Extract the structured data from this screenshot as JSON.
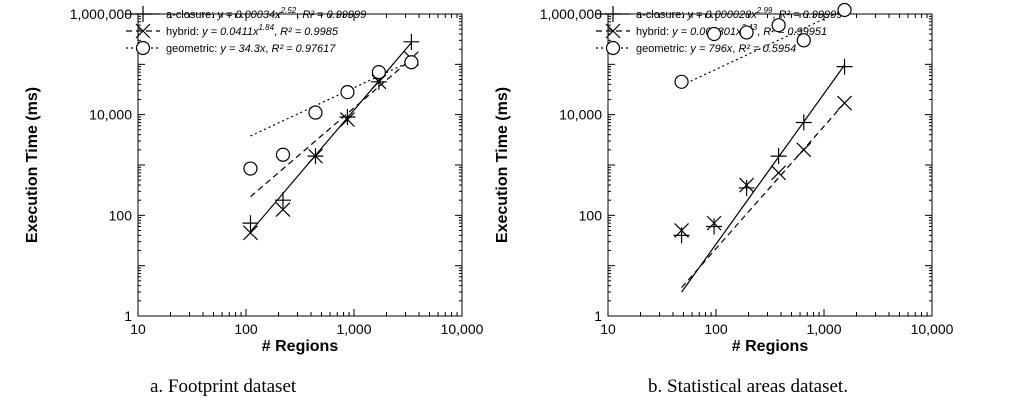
{
  "chart_data": [
    {
      "type": "scatter",
      "caption": "a. Footprint dataset",
      "xlabel": "# Regions",
      "ylabel": "Execution Time (ms)",
      "x_scale": "log",
      "y_scale": "log",
      "xlim": [
        10,
        10000
      ],
      "ylim": [
        1,
        1000000
      ],
      "x_ticks": [
        "10",
        "100",
        "1,000",
        "10,000"
      ],
      "y_ticks": [
        "1",
        "100",
        "10,000",
        "1,000,000"
      ],
      "legend_position": "top-left",
      "series": [
        {
          "name": "a-closure",
          "marker": "plus",
          "line": "solid",
          "eq_main": "a-closure: ",
          "eq_formula": "y = 0.00034x",
          "eq_exp": "2.52",
          "eq_r2": "R² = 0.99999",
          "fit": {
            "kind": "power",
            "a": 0.00034,
            "b": 2.52
          },
          "x": [
            110,
            220,
            440,
            870,
            1700,
            3400
          ],
          "y": [
            70,
            200,
            1500,
            9000,
            45000,
            280000
          ]
        },
        {
          "name": "hybrid",
          "marker": "x",
          "line": "dashed",
          "eq_main": "hybrid: ",
          "eq_formula": "y = 0.0411x",
          "eq_exp": "1.84",
          "eq_r2": "R² = 0.9985",
          "fit": {
            "kind": "power",
            "a": 0.0411,
            "b": 1.84
          },
          "x": [
            110,
            220,
            440,
            870,
            1700,
            3400
          ],
          "y": [
            45,
            130,
            1500,
            8000,
            45000,
            130000
          ]
        },
        {
          "name": "geometric",
          "marker": "circle",
          "line": "dotted",
          "eq_main": "geometric: ",
          "eq_formula": "y = 34.3x",
          "eq_exp": "",
          "eq_r2": "R² = 0.97617",
          "fit": {
            "kind": "linear",
            "a": 34.3
          },
          "x": [
            110,
            220,
            440,
            870,
            1700,
            3400
          ],
          "y": [
            850,
            1600,
            11000,
            28000,
            70000,
            110000
          ]
        }
      ]
    },
    {
      "type": "scatter",
      "caption": "b. Statistical areas dataset.",
      "xlabel": "# Regions",
      "ylabel": "Execution Time (ms)",
      "x_scale": "log",
      "y_scale": "log",
      "xlim": [
        10,
        10000
      ],
      "ylim": [
        1,
        1000000
      ],
      "x_ticks": [
        "10",
        "100",
        "1,000",
        "10,000"
      ],
      "y_ticks": [
        "1",
        "100",
        "10,000",
        "1,000,000"
      ],
      "legend_position": "top-left",
      "series": [
        {
          "name": "a-closure",
          "marker": "plus",
          "line": "solid",
          "eq_main": "a-closure: ",
          "eq_formula": "y = 0.000028x",
          "eq_exp": "2.99",
          "eq_r2": "R² = 0.99999",
          "fit": {
            "kind": "power",
            "a": 2.8e-05,
            "b": 2.99
          },
          "x": [
            48,
            96,
            192,
            380,
            650,
            1550
          ],
          "y": [
            40,
            60,
            350,
            1500,
            7000,
            90000
          ]
        },
        {
          "name": "hybrid",
          "marker": "x",
          "line": "dashed",
          "eq_main": "hybrid: ",
          "eq_formula": "y = 0.000301x",
          "eq_exp": "2.43",
          "eq_r2": "R² = 0.99951",
          "fit": {
            "kind": "power",
            "a": 0.000301,
            "b": 2.43
          },
          "x": [
            48,
            96,
            192,
            380,
            650,
            1550
          ],
          "y": [
            50,
            70,
            400,
            700,
            2000,
            17000
          ]
        },
        {
          "name": "geometric",
          "marker": "circle",
          "line": "dotted",
          "eq_main": "geometric: ",
          "eq_formula": "y = 796x",
          "eq_exp": "",
          "eq_r2": "R² = 0.5954",
          "fit": {
            "kind": "linear",
            "a": 796
          },
          "x": [
            48,
            96,
            192,
            380,
            650,
            1550
          ],
          "y": [
            45000,
            400000,
            430000,
            600000,
            300000,
            1200000
          ]
        }
      ]
    }
  ]
}
